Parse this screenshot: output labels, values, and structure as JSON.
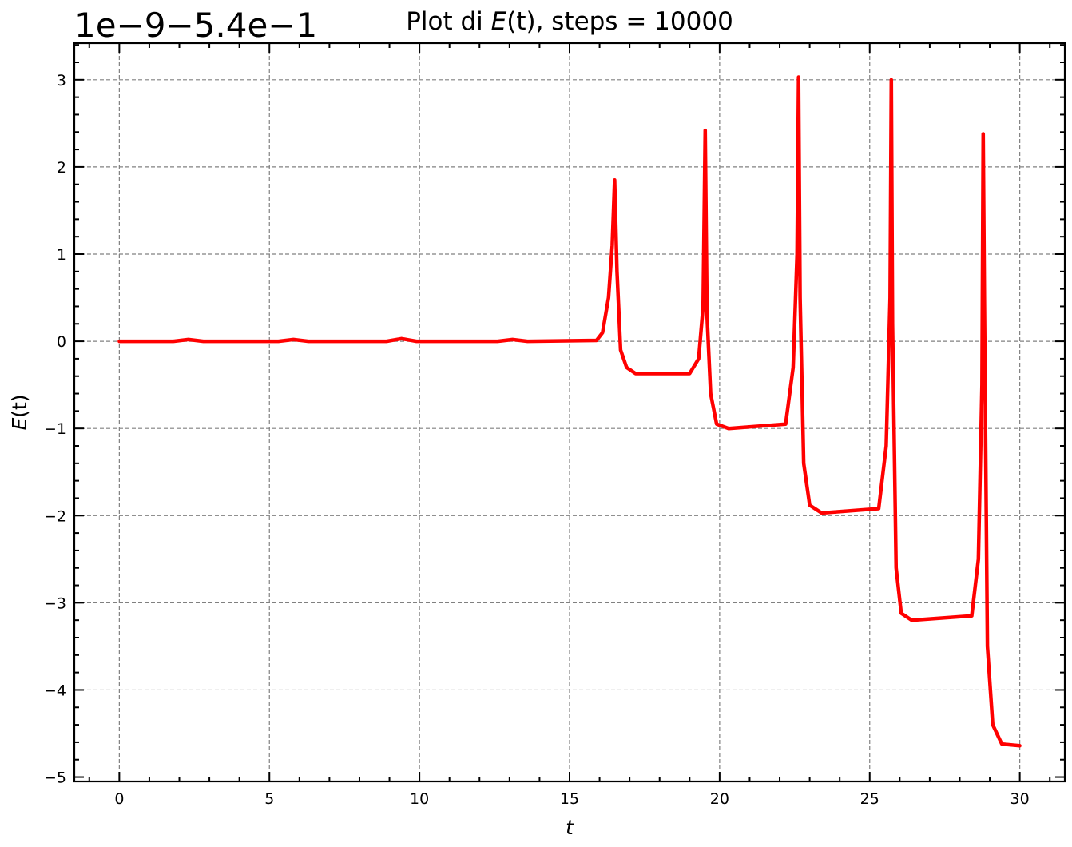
{
  "chart_data": {
    "type": "line",
    "title_prefix": "Plot di ",
    "title_var": "E",
    "title_paren": "(t)",
    "title_suffix": ", steps = 10000",
    "offset_label": "1e−9−5.4e−1",
    "xlabel": "t",
    "ylabel_var": "E",
    "ylabel_paren": "(t)",
    "xlim": [
      -1.5,
      31.5
    ],
    "ylim": [
      -5.05,
      3.42
    ],
    "xticks": [
      0,
      5,
      10,
      15,
      20,
      25,
      30
    ],
    "xtick_labels": [
      "0",
      "5",
      "10",
      "15",
      "20",
      "25",
      "30"
    ],
    "yticks": [
      3,
      2,
      1,
      0,
      -1,
      -2,
      -3,
      -4,
      -5
    ],
    "ytick_labels": [
      "3",
      "2",
      "1",
      "0",
      "−1",
      "−2",
      "−3",
      "−4",
      "−5"
    ],
    "grid": true,
    "line_color": "#ff0000",
    "series": [
      {
        "x": [
          0,
          1.8,
          2.3,
          2.8,
          3.3,
          5.3,
          5.8,
          6.3,
          8.9,
          9.4,
          9.9,
          12.6,
          13.1,
          13.6,
          15.9,
          16.1,
          16.3,
          16.42,
          16.5,
          16.58,
          16.7,
          16.9,
          17.2,
          19.0,
          19.3,
          19.45,
          19.52,
          19.58,
          19.7,
          19.9,
          20.3,
          22.2,
          22.45,
          22.58,
          22.63,
          22.68,
          22.8,
          23.0,
          23.4,
          25.3,
          25.55,
          25.68,
          25.72,
          25.76,
          25.88,
          26.05,
          26.4,
          28.4,
          28.62,
          28.74,
          28.78,
          28.82,
          28.92,
          29.1,
          29.4,
          30.0
        ],
        "y": [
          0,
          0,
          0.02,
          0,
          0,
          0,
          0.02,
          0,
          0,
          0.03,
          0,
          0,
          0.02,
          0,
          0.01,
          0.1,
          0.5,
          1.1,
          1.85,
          0.8,
          -0.1,
          -0.3,
          -0.37,
          -0.37,
          -0.2,
          0.4,
          2.42,
          0.3,
          -0.6,
          -0.95,
          -1.0,
          -0.95,
          -0.3,
          1.0,
          3.03,
          0.5,
          -1.4,
          -1.88,
          -1.97,
          -1.92,
          -1.2,
          0.5,
          3.0,
          0.2,
          -2.6,
          -3.12,
          -3.2,
          -3.15,
          -2.5,
          -0.5,
          2.38,
          0.5,
          -3.5,
          -4.4,
          -4.62,
          -4.64
        ]
      }
    ]
  }
}
